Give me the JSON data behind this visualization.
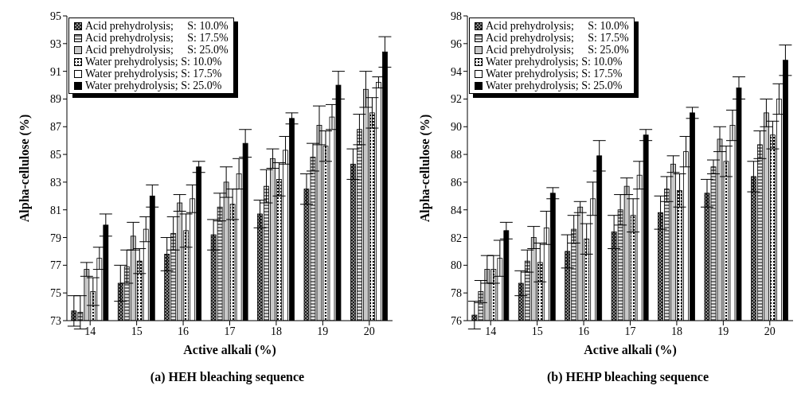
{
  "chart_data": [
    {
      "type": "bar",
      "title": "(a) HEH bleaching sequence",
      "xlabel": "Active alkali (%)",
      "ylabel": "Alpha-cellulose (%)",
      "categories": [
        "14",
        "15",
        "16",
        "17",
        "18",
        "19",
        "20"
      ],
      "ylim": [
        73,
        95
      ],
      "yticks": [
        73,
        75,
        77,
        79,
        81,
        83,
        85,
        87,
        89,
        91,
        93,
        95
      ],
      "legend": "top left",
      "series": [
        {
          "name": "Acid prehydrolysis;     S: 10.0%",
          "color": "#8c8c8c",
          "values": [
            73.7,
            75.7,
            77.8,
            79.2,
            80.7,
            82.5,
            84.3
          ],
          "errors": [
            1.1,
            1.3,
            1.2,
            1.1,
            1.0,
            1.1,
            1.1
          ]
        },
        {
          "name": "Acid prehydrolysis;     S: 17.5%",
          "color": "#e6e6e6",
          "values": [
            73.6,
            76.9,
            79.3,
            81.2,
            82.7,
            84.8,
            86.8
          ],
          "errors": [
            1.2,
            1.2,
            1.2,
            1.0,
            1.2,
            1.0,
            1.1
          ]
        },
        {
          "name": "Acid prehydrolysis;     S: 25.0%",
          "color": "#c8c8c8",
          "values": [
            76.7,
            79.1,
            81.5,
            83.0,
            84.7,
            87.1,
            89.7
          ],
          "errors": [
            0.5,
            1.0,
            0.6,
            1.1,
            0.7,
            1.4,
            1.3
          ]
        },
        {
          "name": "Water prehydrolysis; S: 10.0%",
          "color": "#f0f0f0",
          "values": [
            75.1,
            77.3,
            79.5,
            81.4,
            83.2,
            85.6,
            88.0
          ],
          "errors": [
            1.0,
            0.9,
            1.2,
            1.1,
            1.2,
            1.1,
            1.1
          ]
        },
        {
          "name": "Water prehydrolysis; S: 17.5%",
          "color": "#ffffff",
          "values": [
            77.5,
            79.6,
            81.8,
            83.6,
            85.3,
            87.7,
            90.2
          ],
          "errors": [
            0.8,
            0.9,
            1.0,
            1.1,
            1.0,
            0.9,
            0.4
          ]
        },
        {
          "name": "Water prehydrolysis; S: 25.0%",
          "color": "#000000",
          "values": [
            79.9,
            82.0,
            84.1,
            85.8,
            87.6,
            90.0,
            92.4
          ],
          "errors": [
            0.8,
            0.8,
            0.4,
            1.0,
            0.4,
            1.0,
            1.1
          ]
        }
      ]
    },
    {
      "type": "bar",
      "title": "(b) HEHP bleaching sequence",
      "xlabel": "Active alkali (%)",
      "ylabel": "Alpha-cellulose (%)",
      "categories": [
        "14",
        "15",
        "16",
        "17",
        "18",
        "19",
        "20"
      ],
      "ylim": [
        76,
        98
      ],
      "yticks": [
        76,
        78,
        80,
        82,
        84,
        86,
        88,
        90,
        92,
        94,
        96,
        98
      ],
      "legend": "top left",
      "series": [
        {
          "name": "Acid prehydrolysis;     S: 10.0%",
          "color": "#8c8c8c",
          "values": [
            76.4,
            78.7,
            81.0,
            82.4,
            83.8,
            85.2,
            86.4
          ],
          "errors": [
            1.0,
            0.9,
            1.2,
            1.2,
            1.2,
            1.0,
            1.1
          ]
        },
        {
          "name": "Acid prehydrolysis;     S: 17.5%",
          "color": "#e6e6e6",
          "values": [
            78.1,
            80.3,
            82.6,
            84.0,
            85.5,
            87.1,
            88.7
          ],
          "errors": [
            0.8,
            0.8,
            1.0,
            1.1,
            0.9,
            0.5,
            1.0
          ]
        },
        {
          "name": "Acid prehydrolysis;     S: 25.0%",
          "color": "#c8c8c8",
          "values": [
            79.7,
            82.0,
            84.2,
            85.7,
            87.3,
            89.1,
            91.0
          ],
          "errors": [
            1.0,
            0.8,
            0.4,
            0.6,
            0.6,
            0.9,
            1.0
          ]
        },
        {
          "name": "Water prehydrolysis; S: 10.0%",
          "color": "#f0f0f0",
          "values": [
            79.7,
            80.2,
            81.9,
            83.6,
            85.4,
            87.5,
            89.4
          ],
          "errors": [
            1.0,
            1.4,
            1.1,
            1.2,
            1.2,
            1.1,
            1.0
          ]
        },
        {
          "name": "Water prehydrolysis; S: 17.5%",
          "color": "#ffffff",
          "values": [
            80.5,
            82.7,
            84.8,
            86.5,
            88.2,
            90.1,
            92.0
          ],
          "errors": [
            1.3,
            1.2,
            1.2,
            1.0,
            1.1,
            1.1,
            1.1
          ]
        },
        {
          "name": "Water prehydrolysis; S: 25.0%",
          "color": "#000000",
          "values": [
            82.5,
            85.2,
            87.9,
            89.4,
            91.0,
            92.8,
            94.8
          ],
          "errors": [
            0.6,
            0.4,
            1.1,
            0.4,
            0.4,
            0.8,
            1.1
          ]
        }
      ]
    }
  ]
}
